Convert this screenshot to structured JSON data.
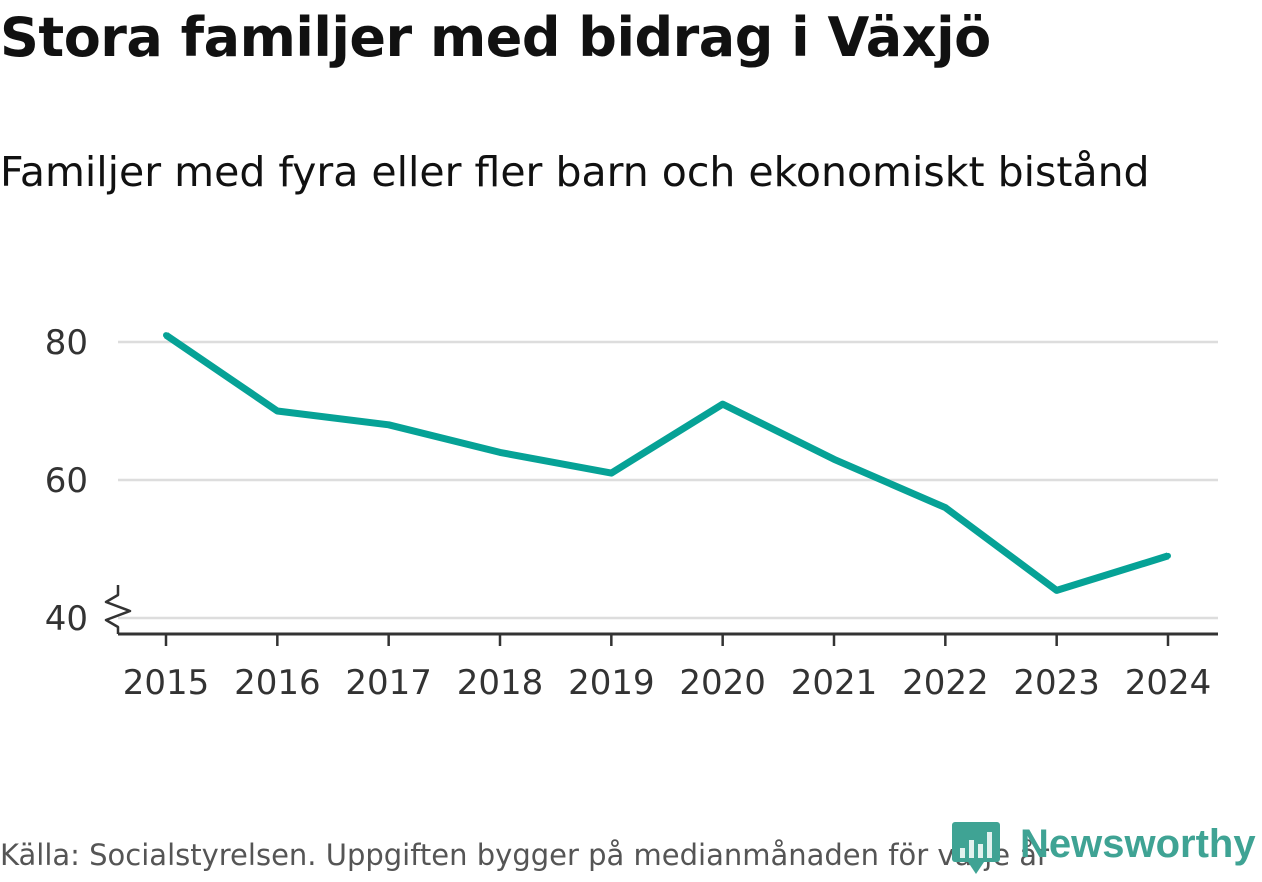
{
  "chart_data": {
    "type": "line",
    "title": "Stora familjer med bidrag i Växjö",
    "subtitle": "Familjer med fyra eller fler barn och ekonomiskt bistånd",
    "x": [
      "2015",
      "2016",
      "2017",
      "2018",
      "2019",
      "2020",
      "2021",
      "2022",
      "2023",
      "2024"
    ],
    "series": [
      {
        "name": "Familjer",
        "values": [
          81,
          70,
          68,
          64,
          61,
          71,
          63,
          56,
          44,
          49
        ]
      }
    ],
    "yticks": [
      "40",
      "60",
      "80"
    ],
    "ylim": [
      40,
      85
    ],
    "grid": true,
    "axis_break": true,
    "xlabel": "",
    "ylabel": "",
    "line_color": "#06a296",
    "grid_color": "#dddddd"
  },
  "footer": {
    "source": "Källa: Socialstyrelsen. Uppgiften bygger på medianmånaden för varje år",
    "brand": "Newsworthy",
    "brand_color": "#3fa394"
  }
}
